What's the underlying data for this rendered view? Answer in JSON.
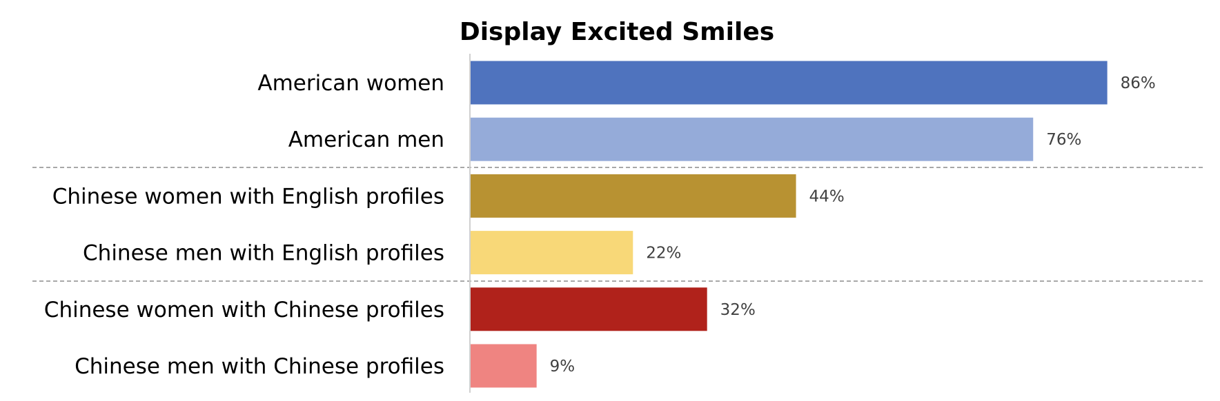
{
  "chart_data": {
    "type": "bar",
    "orientation": "horizontal",
    "title": "Display Excited Smiles",
    "xlabel": "",
    "ylabel": "",
    "xlim": [
      0,
      100
    ],
    "grid": false,
    "legend": "none",
    "categories": [
      "American women",
      "American men",
      "Chinese women with English profiles",
      "Chinese men with English profiles",
      "Chinese women with Chinese profiles",
      "Chinese men with Chinese profiles"
    ],
    "values": [
      86,
      76,
      44,
      22,
      32,
      9
    ],
    "data_labels": [
      "86%",
      "76%",
      "44%",
      "22%",
      "32%",
      "9%"
    ],
    "colors": [
      "#4F73BE",
      "#95ABD9",
      "#B89232",
      "#F8D878",
      "#B0221B",
      "#EF8481"
    ],
    "group_separators_after": [
      1,
      3
    ]
  }
}
